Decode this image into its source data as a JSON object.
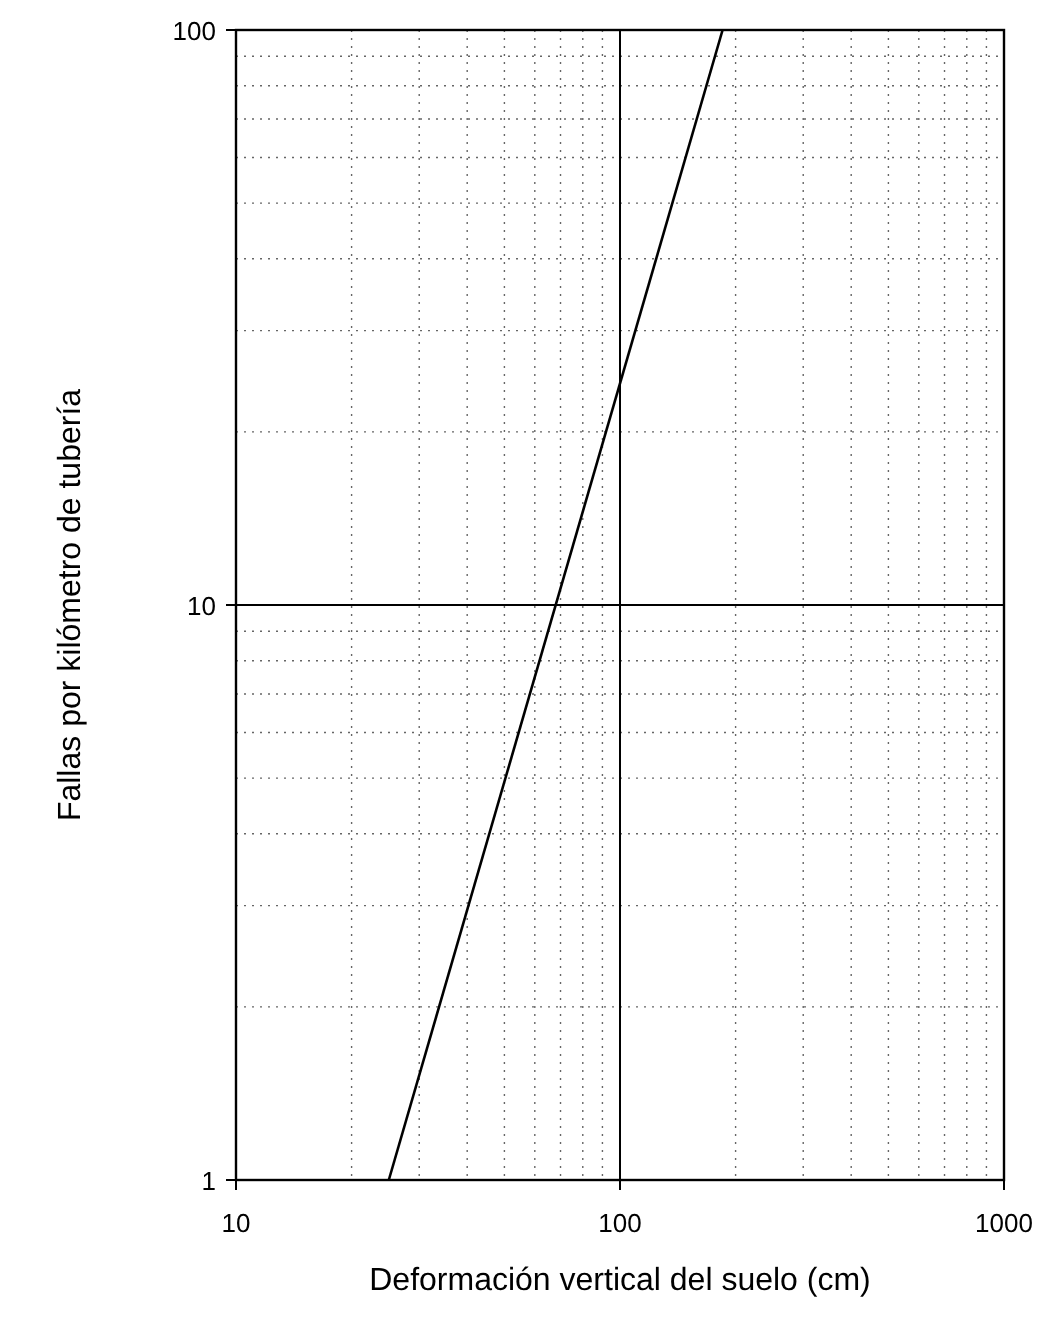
{
  "chart_data": {
    "type": "line",
    "xlabel": "Deformación vertical del suelo (cm)",
    "ylabel": "Fallas por kilómetro de tubería",
    "x": [
      25,
      185
    ],
    "series": [
      {
        "color": "#000000",
        "values": [
          1,
          100
        ]
      }
    ],
    "log": "xy",
    "xlim": [
      10,
      1000
    ],
    "ylim": [
      1,
      100
    ],
    "xticks": [
      10,
      100,
      1000
    ],
    "yticks": [
      1,
      10,
      100
    ],
    "grid": true,
    "marker": "none",
    "line_style": "solid"
  }
}
